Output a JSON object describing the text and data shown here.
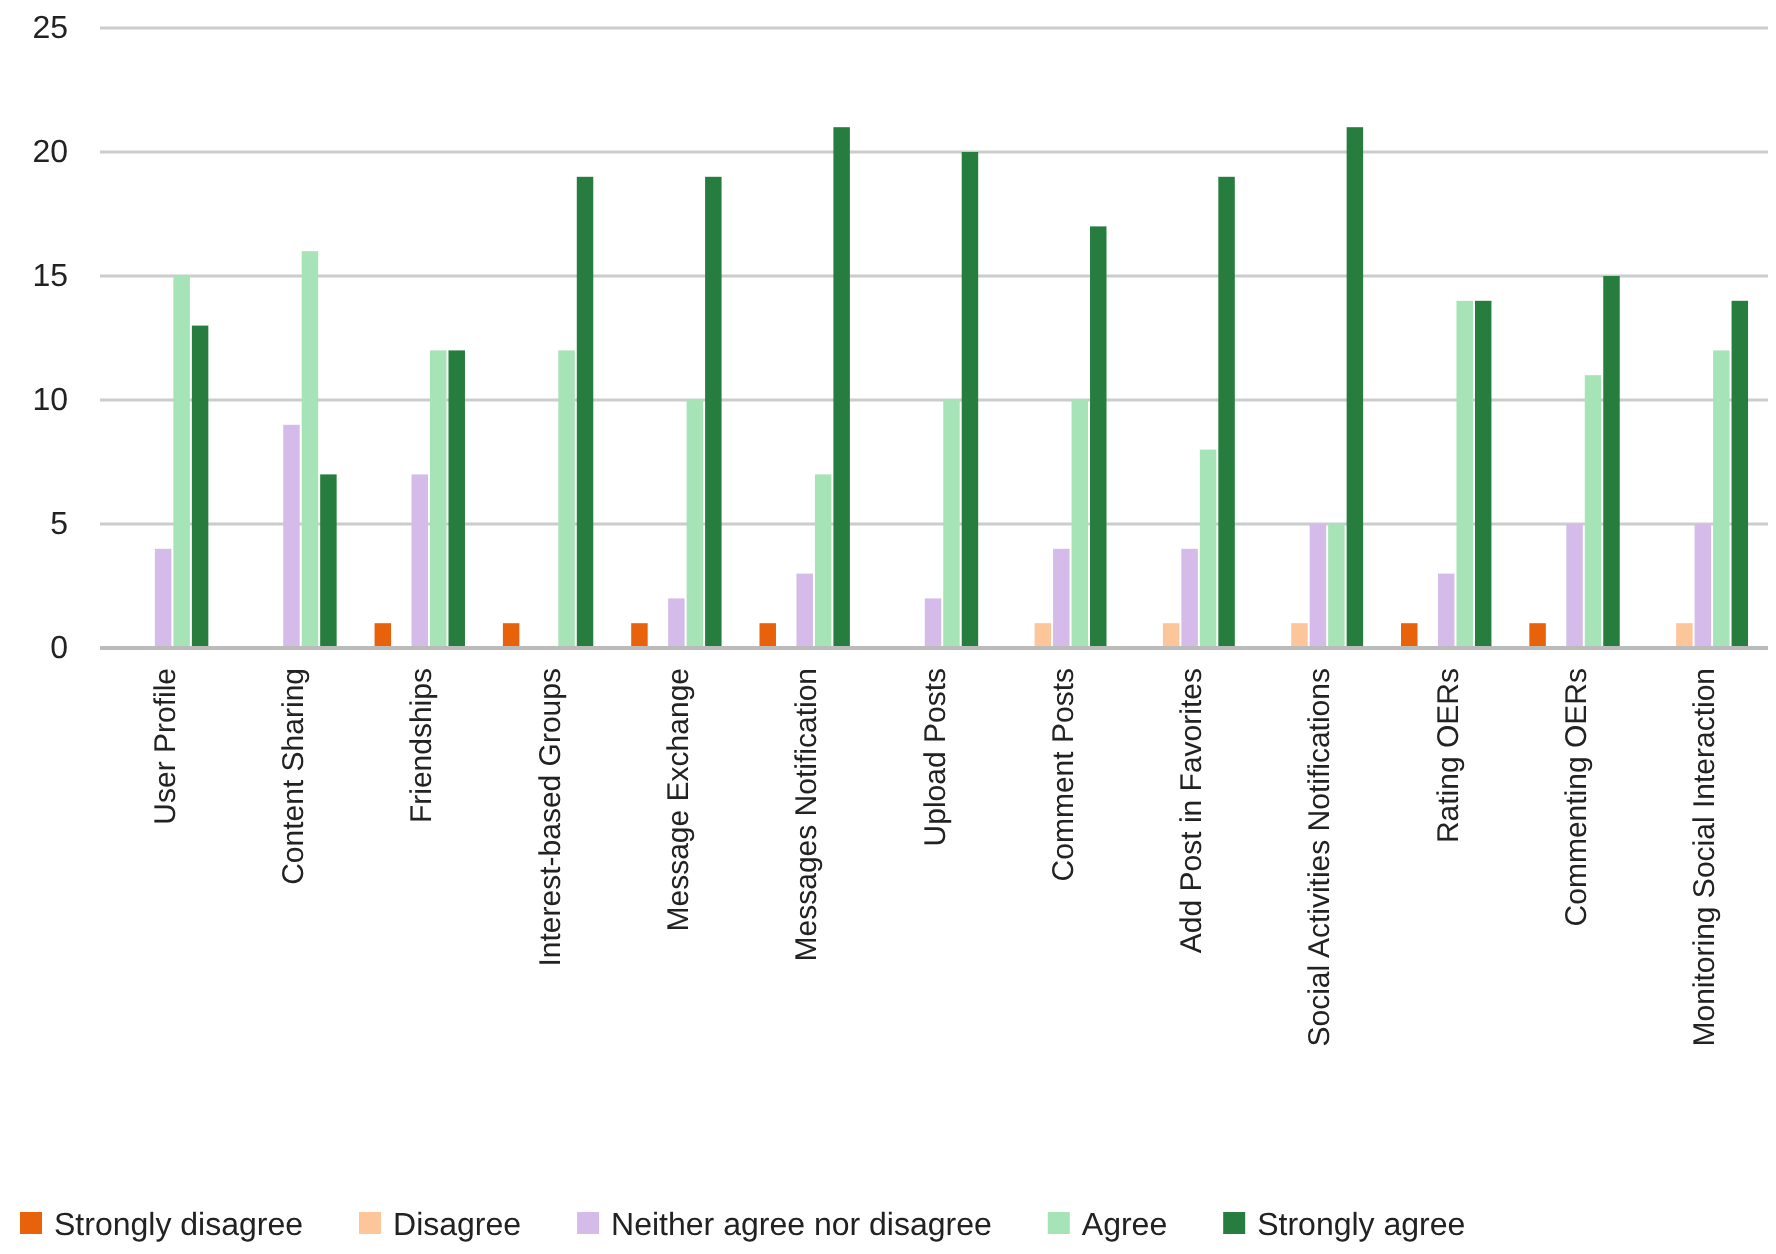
{
  "chart_data": {
    "type": "bar",
    "categories": [
      "User Profile",
      "Content Sharing",
      "Friendships",
      "Interest-based Groups",
      "Message Exchange",
      "Messages Notification",
      "Upload Posts",
      "Comment Posts",
      "Add Post in Favorites",
      "Social Activities Notifications",
      "Rating OERs",
      "Commenting OERs",
      "Monitoring Social Interaction"
    ],
    "series": [
      {
        "name": "Strongly disagree",
        "color": "#e8620c",
        "values": [
          0,
          0,
          1,
          1,
          1,
          1,
          0,
          0,
          0,
          0,
          1,
          1,
          0
        ]
      },
      {
        "name": "Disagree",
        "color": "#fdc59a",
        "values": [
          0,
          0,
          0,
          0,
          0,
          0,
          0,
          1,
          1,
          1,
          0,
          0,
          1
        ]
      },
      {
        "name": "Neither agree nor disagree",
        "color": "#d5bbea",
        "values": [
          4,
          9,
          7,
          0,
          2,
          3,
          2,
          4,
          4,
          5,
          3,
          5,
          5
        ]
      },
      {
        "name": "Agree",
        "color": "#a6e3b6",
        "values": [
          15,
          16,
          12,
          12,
          10,
          7,
          10,
          10,
          8,
          5,
          14,
          11,
          12
        ]
      },
      {
        "name": "Strongly agree",
        "color": "#267d3e",
        "values": [
          13,
          7,
          12,
          19,
          19,
          21,
          20,
          17,
          19,
          21,
          14,
          15,
          14
        ]
      }
    ],
    "ylim": [
      0,
      25
    ],
    "yticks": [
      0,
      5,
      10,
      15,
      20,
      25
    ],
    "grid": "y",
    "legend": "bottom"
  }
}
